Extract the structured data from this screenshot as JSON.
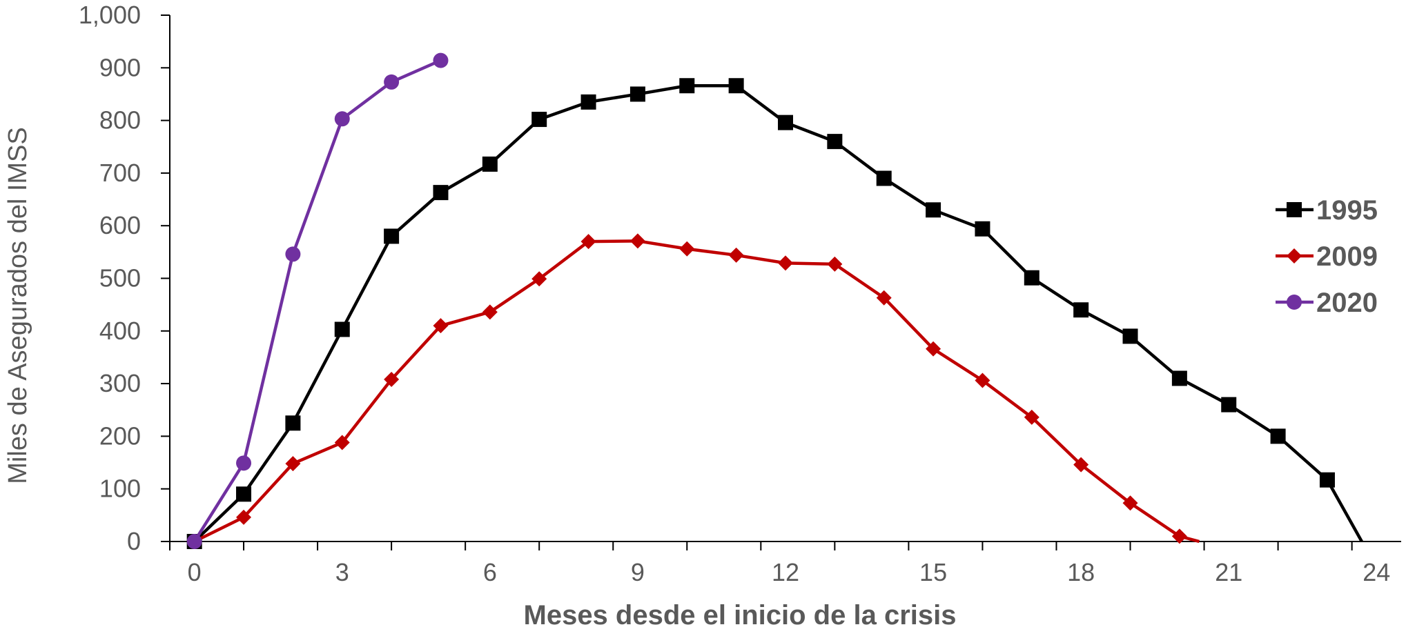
{
  "chart_data": {
    "type": "line",
    "xlabel": "Meses desde el inicio de la crisis",
    "ylabel": "Miles de Asegurados del IMSS",
    "xlim": [
      -0.5,
      24.5
    ],
    "ylim": [
      0,
      1000
    ],
    "x_ticks": [
      0,
      3,
      6,
      9,
      12,
      15,
      18,
      21,
      24
    ],
    "x_tick_labels": [
      "0",
      "3",
      "6",
      "9",
      "12",
      "15",
      "18",
      "21",
      "24"
    ],
    "y_ticks": [
      0,
      100,
      200,
      300,
      400,
      500,
      600,
      700,
      800,
      900,
      1000
    ],
    "y_tick_labels": [
      "0",
      "100",
      "200",
      "300",
      "400",
      "500",
      "600",
      "700",
      "800",
      "900",
      "1,000"
    ],
    "legend_position": "right",
    "grid": false,
    "series": [
      {
        "name": "1995",
        "color": "#000000",
        "marker": "square",
        "points": [
          [
            0,
            0
          ],
          [
            1,
            90
          ],
          [
            2,
            225
          ],
          [
            3,
            403
          ],
          [
            4,
            580
          ],
          [
            5,
            663
          ],
          [
            6,
            717
          ],
          [
            7,
            802
          ],
          [
            8,
            835
          ],
          [
            9,
            850
          ],
          [
            10,
            866
          ],
          [
            11,
            866
          ],
          [
            12,
            796
          ],
          [
            13,
            760
          ],
          [
            14,
            690
          ],
          [
            15,
            630
          ],
          [
            16,
            594
          ],
          [
            17,
            501
          ],
          [
            18,
            440
          ],
          [
            19,
            390
          ],
          [
            20,
            310
          ],
          [
            21,
            260
          ],
          [
            22,
            200
          ],
          [
            23,
            117
          ],
          [
            23.7,
            0
          ]
        ]
      },
      {
        "name": "2009",
        "color": "#c00000",
        "marker": "diamond",
        "points": [
          [
            0,
            0
          ],
          [
            1,
            46
          ],
          [
            2,
            148
          ],
          [
            3,
            188
          ],
          [
            4,
            308
          ],
          [
            5,
            410
          ],
          [
            6,
            436
          ],
          [
            7,
            499
          ],
          [
            8,
            570
          ],
          [
            9,
            571
          ],
          [
            10,
            556
          ],
          [
            11,
            544
          ],
          [
            12,
            529
          ],
          [
            13,
            527
          ],
          [
            14,
            463
          ],
          [
            15,
            366
          ],
          [
            16,
            306
          ],
          [
            17,
            236
          ],
          [
            18,
            146
          ],
          [
            19,
            73
          ],
          [
            20,
            10
          ],
          [
            20.4,
            0
          ]
        ]
      },
      {
        "name": "2020",
        "color": "#7030a0",
        "marker": "circle",
        "points": [
          [
            0,
            0
          ],
          [
            1,
            149
          ],
          [
            2,
            546
          ],
          [
            3,
            803
          ],
          [
            4,
            873
          ],
          [
            5,
            914
          ]
        ]
      }
    ]
  }
}
